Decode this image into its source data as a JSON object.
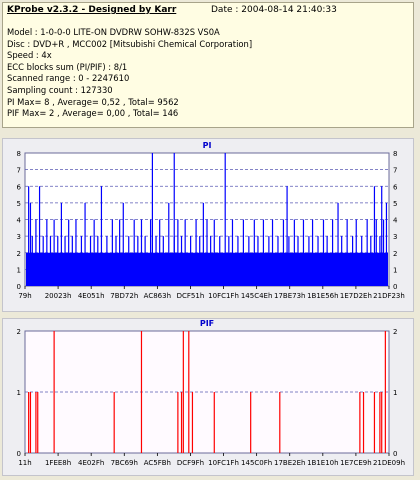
{
  "header": {
    "app_title": "KProbe v2.3.2 - Designed by Karr",
    "date": "Date : 2004-08-14 21:40:33",
    "lines": [
      "Model : 1-0-0-0 LITE-ON DVDRW SOHW-832S  VS0A",
      "Disc : DVD+R , MCC002 [Mitsubishi Chemical Corporation]",
      "Speed : 4x",
      "ECC blocks sum (PI/PIF) : 8/1",
      "Scanned range : 0 - 2247610",
      "Sampling count : 127330",
      "PI Max= 8 , Average= 0,52 , Total= 9562",
      "PIF Max= 2 , Average= 0,00 , Total= 146"
    ]
  },
  "colors": {
    "pi": "#0000ff",
    "pif": "#ff0000",
    "grid": "#5a5ab4",
    "plot_bg_pi": "#ffffff",
    "plot_bg_pif": "#fffaff"
  },
  "chart_data": [
    {
      "type": "bar",
      "title": "PI",
      "ylim": [
        0,
        8
      ],
      "yticks": [
        0,
        1,
        2,
        3,
        4,
        5,
        6,
        7,
        8
      ],
      "xtick_labels": [
        "79h",
        "20023h",
        "4E051h",
        "7BD72h",
        "AC863h",
        "DCF51h",
        "10FC1Fh",
        "145C4Eh",
        "17BE73h",
        "1B1E56h",
        "1E7D2Eh",
        "21DF23h"
      ],
      "baseline": 2,
      "spikes": [
        [
          0.01,
          6
        ],
        [
          0.015,
          5
        ],
        [
          0.02,
          3
        ],
        [
          0.03,
          4
        ],
        [
          0.04,
          6
        ],
        [
          0.05,
          3
        ],
        [
          0.06,
          4
        ],
        [
          0.07,
          3
        ],
        [
          0.08,
          4
        ],
        [
          0.09,
          3
        ],
        [
          0.1,
          5
        ],
        [
          0.11,
          3
        ],
        [
          0.12,
          4
        ],
        [
          0.13,
          3
        ],
        [
          0.14,
          4
        ],
        [
          0.155,
          3
        ],
        [
          0.165,
          5
        ],
        [
          0.18,
          3
        ],
        [
          0.19,
          4
        ],
        [
          0.2,
          3
        ],
        [
          0.21,
          6
        ],
        [
          0.225,
          3
        ],
        [
          0.24,
          4
        ],
        [
          0.25,
          3
        ],
        [
          0.26,
          4
        ],
        [
          0.27,
          5
        ],
        [
          0.285,
          3
        ],
        [
          0.3,
          4
        ],
        [
          0.31,
          3
        ],
        [
          0.32,
          4
        ],
        [
          0.33,
          3
        ],
        [
          0.345,
          4
        ],
        [
          0.36,
          3
        ],
        [
          0.37,
          4
        ],
        [
          0.38,
          3
        ],
        [
          0.395,
          5
        ],
        [
          0.41,
          3
        ],
        [
          0.42,
          4
        ],
        [
          0.43,
          3
        ],
        [
          0.44,
          4
        ],
        [
          0.455,
          3
        ],
        [
          0.47,
          4
        ],
        [
          0.48,
          3
        ],
        [
          0.49,
          5
        ],
        [
          0.5,
          4
        ],
        [
          0.51,
          3
        ],
        [
          0.52,
          4
        ],
        [
          0.535,
          3
        ],
        [
          0.55,
          8
        ],
        [
          0.56,
          3
        ],
        [
          0.57,
          4
        ],
        [
          0.585,
          3
        ],
        [
          0.6,
          4
        ],
        [
          0.615,
          3
        ],
        [
          0.63,
          4
        ],
        [
          0.64,
          3
        ],
        [
          0.655,
          4
        ],
        [
          0.67,
          3
        ],
        [
          0.68,
          4
        ],
        [
          0.695,
          3
        ],
        [
          0.71,
          4
        ],
        [
          0.725,
          3
        ],
        [
          0.74,
          4
        ],
        [
          0.75,
          3
        ],
        [
          0.765,
          4
        ],
        [
          0.78,
          3
        ],
        [
          0.79,
          4
        ],
        [
          0.805,
          3
        ],
        [
          0.82,
          4
        ],
        [
          0.83,
          3
        ],
        [
          0.845,
          4
        ],
        [
          0.86,
          5
        ],
        [
          0.87,
          3
        ],
        [
          0.885,
          4
        ],
        [
          0.9,
          3
        ],
        [
          0.91,
          4
        ],
        [
          0.925,
          3
        ],
        [
          0.94,
          4
        ],
        [
          0.95,
          3
        ],
        [
          0.965,
          4
        ],
        [
          0.975,
          3
        ],
        [
          0.985,
          4
        ],
        [
          0.993,
          5
        ]
      ],
      "tall_spikes": [
        [
          0.35,
          8
        ],
        [
          0.41,
          8
        ],
        [
          0.72,
          6
        ],
        [
          0.96,
          6
        ],
        [
          0.98,
          6
        ]
      ]
    },
    {
      "type": "bar",
      "title": "PIF",
      "ylim": [
        0,
        2
      ],
      "yticks": [
        0,
        1,
        2
      ],
      "xtick_labels": [
        "11h",
        "1FEE8h",
        "4E02Fh",
        "7BC69h",
        "AC5FBh",
        "DCF9Fh",
        "10FC1Fh",
        "145C0Fh",
        "17BE2Eh",
        "1B1E10h",
        "1E7CE9h",
        "21DE09h"
      ],
      "spikes": [
        [
          0.01,
          1
        ],
        [
          0.015,
          1
        ],
        [
          0.03,
          1
        ],
        [
          0.035,
          1
        ],
        [
          0.08,
          2
        ],
        [
          0.245,
          1
        ],
        [
          0.32,
          2
        ],
        [
          0.42,
          1
        ],
        [
          0.43,
          1
        ],
        [
          0.435,
          2
        ],
        [
          0.45,
          2
        ],
        [
          0.46,
          1
        ],
        [
          0.52,
          1
        ],
        [
          0.62,
          1
        ],
        [
          0.7,
          1
        ],
        [
          0.92,
          1
        ],
        [
          0.93,
          1
        ],
        [
          0.96,
          1
        ],
        [
          0.975,
          1
        ],
        [
          0.98,
          1
        ],
        [
          0.99,
          2
        ]
      ]
    }
  ]
}
